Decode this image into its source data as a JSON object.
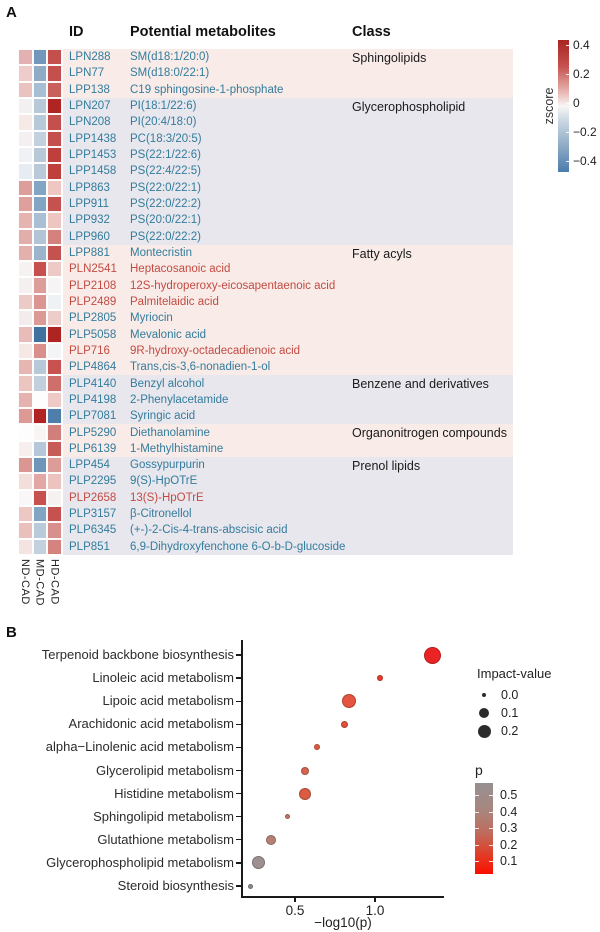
{
  "figure": {
    "panel_a_label": "A",
    "panel_b_label": "B"
  },
  "panel_a": {
    "headers": {
      "id": "ID",
      "metabolites": "Potential metabolites",
      "class_label": "Class"
    },
    "band_colors": {
      "pink": "#f8ebe8",
      "gray": "#e8e7ee"
    },
    "text_colors": {
      "teal": "#337c9c",
      "red": "#c44b42"
    }
  },
  "chart_data": [
    {
      "type": "heatmap",
      "title": "Differential metabolites heatmap",
      "columns": [
        "ND-CAD",
        "MD-CAD",
        "HD-CAD"
      ],
      "colorbar": {
        "title": "zscore",
        "ticks": [
          "0.4",
          "0.2",
          "0",
          "−0.2",
          "−0.4"
        ],
        "top_color": "#a92422",
        "mid_color": "#f9f6f5",
        "bottom_color": "#4b7cab"
      },
      "groups": [
        {
          "class": "Sphingolipids",
          "band": "pink",
          "rows": [
            {
              "id": "LPN288",
              "name": "SM(d18:1/20:0)",
              "red": false,
              "cells": [
                "#e3b1b1",
                "#7297ba",
                "#c4504e"
              ]
            },
            {
              "id": "LPN77",
              "name": "SM(d18:0/22:1)",
              "red": false,
              "cells": [
                "#edccc9",
                "#8fabc6",
                "#c4504e"
              ]
            },
            {
              "id": "LPP138",
              "name": "C19 sphingosine-1-phosphate",
              "red": false,
              "cells": [
                "#eac3c0",
                "#a8bed2",
                "#c9605c"
              ]
            }
          ]
        },
        {
          "class": "Glycerophospholipid",
          "band": "gray",
          "rows": [
            {
              "id": "LPN207",
              "name": "PI(18:1/22:6)",
              "red": false,
              "cells": [
                "#f2f0f1",
                "#b7c8d9",
                "#b02524"
              ]
            },
            {
              "id": "LPN208",
              "name": "PI(20:4/18:0)",
              "red": false,
              "cells": [
                "#f7e9e6",
                "#b7c8d9",
                "#c4504e"
              ]
            },
            {
              "id": "LPP1438",
              "name": "PC(18:3/20:5)",
              "red": false,
              "cells": [
                "#f4eff0",
                "#c3d1df",
                "#c4504e"
              ]
            },
            {
              "id": "LPP1453",
              "name": "PS(22:1/22:6)",
              "red": false,
              "cells": [
                "#eff1f4",
                "#b7c8d9",
                "#bf3f3d"
              ]
            },
            {
              "id": "LPP1458",
              "name": "PS(22:4/22:5)",
              "red": false,
              "cells": [
                "#e7ecf2",
                "#bac9d9",
                "#bf3f3d"
              ]
            },
            {
              "id": "LPP863",
              "name": "PS(22:0/22:1)",
              "red": false,
              "cells": [
                "#dd9e9b",
                "#82a5c3",
                "#eec6c2"
              ]
            },
            {
              "id": "LPP911",
              "name": "PS(22:0/22:2)",
              "red": false,
              "cells": [
                "#dda09d",
                "#82a5c3",
                "#c4534f"
              ]
            },
            {
              "id": "LPP932",
              "name": "PS(20:0/22:1)",
              "red": false,
              "cells": [
                "#e5b3b0",
                "#aabfd4",
                "#edc5c1"
              ]
            },
            {
              "id": "LPP960",
              "name": "PS(22:0/22:2)",
              "red": false,
              "cells": [
                "#e2aeab",
                "#b2c4d6",
                "#d5817d"
              ]
            }
          ]
        },
        {
          "class": "Fatty acyls",
          "band": "pink",
          "rows": [
            {
              "id": "LPP881",
              "name": "Montecristin",
              "red": false,
              "cells": [
                "#e3b0ad",
                "#9cb4cb",
                "#c4534f"
              ]
            },
            {
              "id": "PLN2541",
              "name": "Heptacosanoic acid",
              "red": true,
              "cells": [
                "#f5f2f1",
                "#c6504d",
                "#eecac6"
              ]
            },
            {
              "id": "PLP2108",
              "name": "12S-hydroperoxy-eicosapentaenoic acid",
              "red": true,
              "cells": [
                "#f4f0ef",
                "#dd9e9b",
                "#f6f4f4"
              ]
            },
            {
              "id": "PLP2489",
              "name": "Palmitelaidic acid",
              "red": true,
              "cells": [
                "#eccac6",
                "#db9693",
                "#eff2f5"
              ]
            },
            {
              "id": "PLP2805",
              "name": "Myriocin",
              "red": false,
              "cells": [
                "#f2edec",
                "#dc9a97",
                "#eccdc9"
              ]
            },
            {
              "id": "PLP5058",
              "name": "Mevalonic acid",
              "red": false,
              "cells": [
                "#e8bcb9",
                "#41729f",
                "#ae2423"
              ]
            },
            {
              "id": "PLP716",
              "name": "9R-hydroxy-octadecadienoic acid",
              "red": true,
              "cells": [
                "#f6e8e5",
                "#d98f8c",
                "#f2f4f6"
              ]
            },
            {
              "id": "PLP4864",
              "name": "Trans,cis-3,6-nonadien-1-ol",
              "red": false,
              "cells": [
                "#e6b6b3",
                "#b7c8d9",
                "#c7524f"
              ]
            }
          ]
        },
        {
          "class": "Benzene and derivatives",
          "band": "gray",
          "rows": [
            {
              "id": "PLP4140",
              "name": "Benzyl alcohol",
              "red": false,
              "cells": [
                "#ecc5c1",
                "#c2d0de",
                "#cf6f6b"
              ]
            },
            {
              "id": "PLP4198",
              "name": "2-Phenylacetamide",
              "red": false,
              "cells": [
                "#e5b2af",
                "#fdfdfe",
                "#eecac6"
              ]
            },
            {
              "id": "PLP7081",
              "name": "Syringic acid",
              "red": false,
              "cells": [
                "#dc9996",
                "#b02423",
                "#4f7eab"
              ]
            }
          ]
        },
        {
          "class": "Organonitrogen compounds",
          "band": "pink",
          "rows": [
            {
              "id": "PLP5290",
              "name": "Diethanolamine",
              "red": false,
              "cells": [
                "#fdfdfe",
                "#f8f5f4",
                "#d07f7b"
              ]
            },
            {
              "id": "PLP6139",
              "name": "1-Methylhistamine",
              "red": false,
              "cells": [
                "#f6efed",
                "#b5c7d8",
                "#c75b57"
              ]
            }
          ]
        },
        {
          "class": "Prenol lipids",
          "band": "gray",
          "rows": [
            {
              "id": "LPP454",
              "name": "Gossypurpurin",
              "red": false,
              "cells": [
                "#d99693",
                "#6f96b9",
                "#dc9d99"
              ]
            },
            {
              "id": "PLP2295",
              "name": "9(S)-HpOTrE",
              "red": false,
              "cells": [
                "#f2dedb",
                "#e2a7a4",
                "#ecc3bf"
              ]
            },
            {
              "id": "PLP2658",
              "name": "13(S)-HpOTrE",
              "red": true,
              "cells": [
                "#f9f7f8",
                "#c6514e",
                "#f4f1f0"
              ]
            },
            {
              "id": "PLP3157",
              "name": "β-Citronellol",
              "red": false,
              "cells": [
                "#ecc7c4",
                "#82a5c3",
                "#c5524f"
              ]
            },
            {
              "id": "PLP6345",
              "name": "(+-)-2-Cis-4-trans-abscisic acid",
              "red": false,
              "cells": [
                "#eac0bd",
                "#b9cada",
                "#d98f8b"
              ]
            },
            {
              "id": "PLP851",
              "name": "6,9-Dihydroxyfenchone 6-O-b-D-glucoside",
              "red": false,
              "cells": [
                "#f4e4e1",
                "#c3d1df",
                "#d5837f"
              ]
            }
          ]
        }
      ]
    },
    {
      "type": "scatter",
      "title": "Pathway enrichment",
      "xlabel": "−log10(p)",
      "xticks": [
        "0.5",
        "1.0"
      ],
      "xlim": [
        0.16,
        1.43
      ],
      "points": [
        {
          "pathway": "Terpenoid backbone biosynthesis",
          "neg_log10_p": 1.36,
          "impact": 0.25,
          "color": "#ea2424",
          "r": 8.5
        },
        {
          "pathway": "Linoleic acid metabolism",
          "neg_log10_p": 1.03,
          "impact": 0.02,
          "color": "#e73c2b",
          "r": 3
        },
        {
          "pathway": "Lipoic acid metabolism",
          "neg_log10_p": 0.84,
          "impact": 0.2,
          "color": "#e4543e",
          "r": 7
        },
        {
          "pathway": "Arachidonic acid metabolism",
          "neg_log10_p": 0.81,
          "impact": 0.04,
          "color": "#e0503a",
          "r": 3.5
        },
        {
          "pathway": "alpha−Linolenic acid metabolism",
          "neg_log10_p": 0.64,
          "impact": 0.02,
          "color": "#dd5a42",
          "r": 3
        },
        {
          "pathway": "Glycerolipid metabolism",
          "neg_log10_p": 0.56,
          "impact": 0.06,
          "color": "#d66450",
          "r": 4
        },
        {
          "pathway": "Histidine metabolism",
          "neg_log10_p": 0.56,
          "impact": 0.15,
          "color": "#da5c43",
          "r": 6
        },
        {
          "pathway": "Sphingolipid metabolism",
          "neg_log10_p": 0.45,
          "impact": 0.02,
          "color": "#c47468",
          "r": 2.5
        },
        {
          "pathway": "Glutathione metabolism",
          "neg_log10_p": 0.35,
          "impact": 0.12,
          "color": "#b58073",
          "r": 5
        },
        {
          "pathway": "Glycerophospholipid metabolism",
          "neg_log10_p": 0.27,
          "impact": 0.17,
          "color": "#9e9090",
          "r": 6.5
        },
        {
          "pathway": "Steroid biosynthesis",
          "neg_log10_p": 0.22,
          "impact": 0.02,
          "color": "#8f8888",
          "r": 2.5
        }
      ],
      "legend_impact": {
        "title": "Impact-value",
        "items": [
          {
            "label": "0.0",
            "r": 2
          },
          {
            "label": "0.1",
            "r": 5
          },
          {
            "label": "0.2",
            "r": 6.5
          }
        ]
      },
      "legend_p": {
        "title": "p",
        "ticks": [
          "0.5",
          "0.4",
          "0.3",
          "0.2",
          "0.1"
        ],
        "top_color": "#969090",
        "bottom_color": "#fb0d00"
      }
    }
  ]
}
